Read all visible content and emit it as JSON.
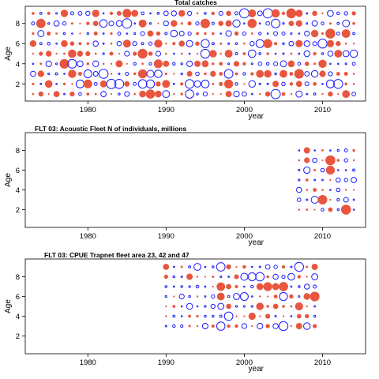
{
  "colors": {
    "positive": "#e8563f",
    "negative": "#1a1aff",
    "axis": "#000000"
  },
  "chart_data": [
    {
      "type": "scatter",
      "subtype": "bubble-residuals",
      "title": "Total catches",
      "xlabel": "year",
      "ylabel": "Age",
      "xlim": [
        1972,
        2015.5
      ],
      "ylim": [
        0.3,
        9.7
      ],
      "xticks": [
        1980,
        1990,
        2000,
        2010
      ],
      "yticks": [
        2,
        4,
        6,
        8
      ],
      "years": [
        1973,
        2014
      ],
      "ages": [
        1,
        9
      ],
      "seed": 11
    },
    {
      "type": "scatter",
      "subtype": "bubble-residuals",
      "title": "FLT 03: Acoustic Fleet   N of individuals, millions",
      "xlabel": "year",
      "ylabel": "Age",
      "xlim": [
        1972,
        2015.5
      ],
      "ylim": [
        0.2,
        9.8
      ],
      "xticks": [
        1980,
        1990,
        2000,
        2010
      ],
      "yticks": [
        2,
        4,
        6,
        8
      ],
      "years": [
        2007,
        2014
      ],
      "ages": [
        2,
        8
      ],
      "seed": 23
    },
    {
      "type": "scatter",
      "subtype": "bubble-residuals",
      "title": "FLT 03: CPUE Trapnet fleet area 23, 42 and 47",
      "xlabel": "year",
      "ylabel": "Age",
      "xlim": [
        1972,
        2015.5
      ],
      "ylim": [
        0.2,
        9.8
      ],
      "xticks": [
        1980,
        1990,
        2000,
        2010
      ],
      "yticks": [
        2,
        4,
        6,
        8
      ],
      "years": [
        1990,
        2009
      ],
      "ages": [
        3,
        9
      ],
      "seed": 37
    }
  ]
}
